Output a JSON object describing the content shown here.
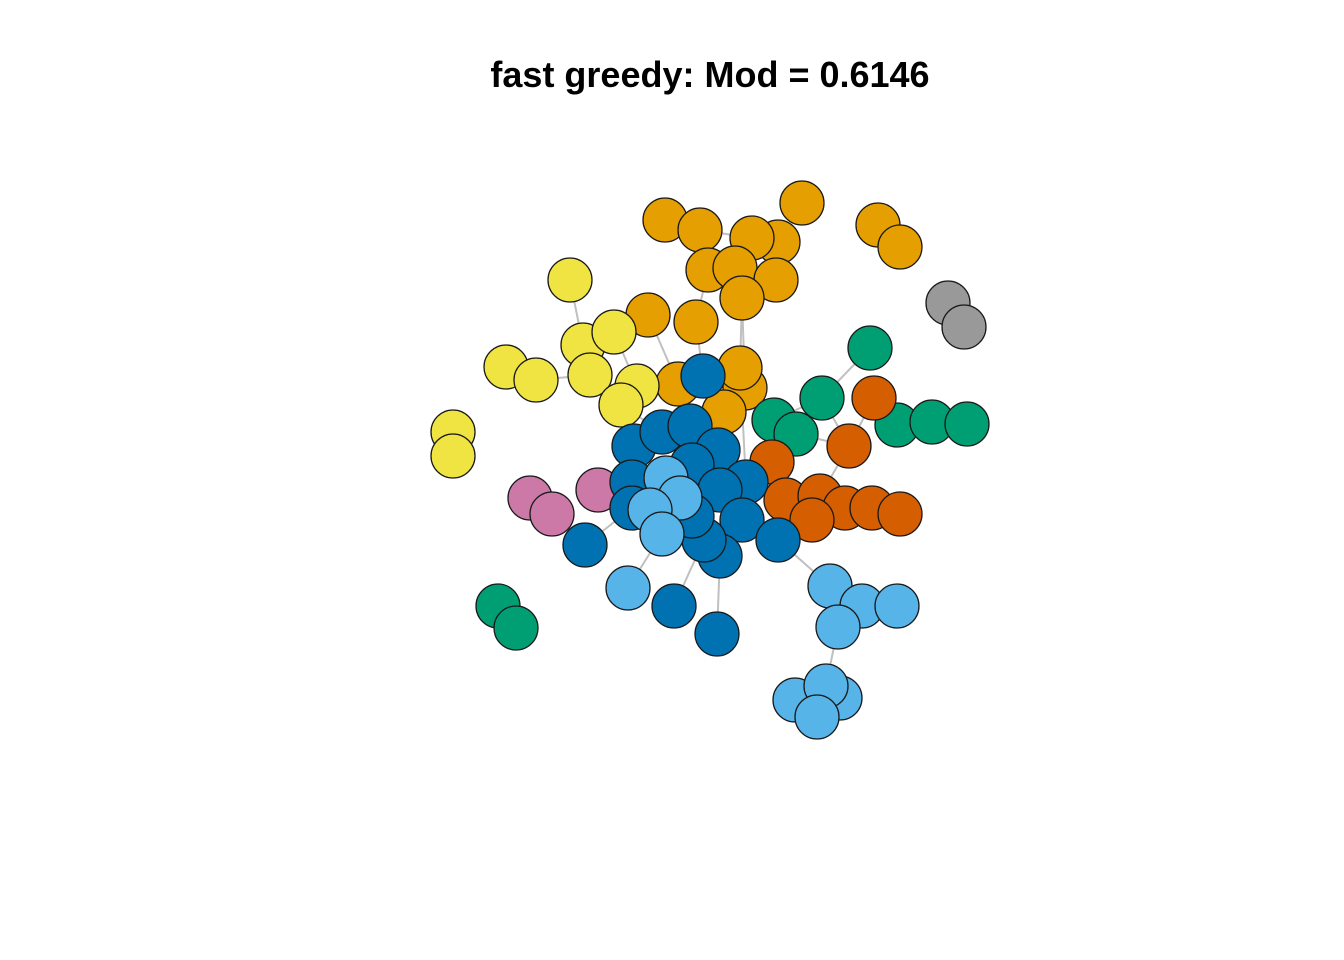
{
  "title": "fast greedy: Mod = 0.6146",
  "community_colors": {
    "orange": "#E69F00",
    "yellow": "#F0E442",
    "blue": "#0072B2",
    "sky": "#56B4E9",
    "vermillion": "#D55E00",
    "green": "#009E73",
    "pink": "#CC79A7",
    "gray": "#999999"
  }
}
